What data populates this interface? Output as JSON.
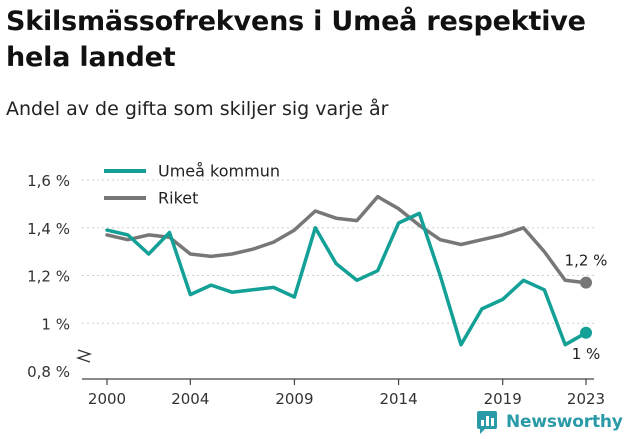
{
  "header": {
    "title": "Skilsmässofrekvens i Umeå respektive hela landet",
    "subtitle": "Andel av de gifta som skiljer sig varje år"
  },
  "brand": {
    "name": "Newsworthy",
    "color": "#2a9aa8"
  },
  "chart_data": {
    "type": "line",
    "ylim": [
      0.8,
      1.7
    ],
    "yticks": [
      0.8,
      1.0,
      1.2,
      1.4,
      1.6
    ],
    "ytick_labels": [
      "0,8 %",
      "1 %",
      "1,2 %",
      "1,4 %",
      "1,6 %"
    ],
    "y_axis_break": true,
    "xlim": [
      2000,
      2023
    ],
    "xticks": [
      2000,
      2004,
      2009,
      2014,
      2019,
      2023
    ],
    "xtick_labels": [
      "2000",
      "2004",
      "2009",
      "2014",
      "2019",
      "2023"
    ],
    "x": [
      2000,
      2001,
      2002,
      2003,
      2004,
      2005,
      2006,
      2007,
      2008,
      2009,
      2010,
      2011,
      2012,
      2013,
      2014,
      2015,
      2016,
      2017,
      2018,
      2019,
      2020,
      2021,
      2022,
      2023
    ],
    "legend_position": "top-left",
    "series": [
      {
        "name": "Umeå kommun",
        "color": "#13a096",
        "values": [
          1.39,
          1.37,
          1.29,
          1.38,
          1.12,
          1.16,
          1.13,
          1.14,
          1.15,
          1.11,
          1.4,
          1.25,
          1.18,
          1.22,
          1.42,
          1.46,
          1.2,
          0.91,
          1.06,
          1.1,
          1.18,
          1.14,
          0.91,
          0.96
        ],
        "end_label": "1 %"
      },
      {
        "name": "Riket",
        "color": "#777777",
        "values": [
          1.37,
          1.35,
          1.37,
          1.36,
          1.29,
          1.28,
          1.29,
          1.31,
          1.34,
          1.39,
          1.47,
          1.44,
          1.43,
          1.53,
          1.48,
          1.41,
          1.35,
          1.33,
          1.35,
          1.37,
          1.4,
          1.3,
          1.18,
          1.17
        ],
        "end_label": "1,2 %"
      }
    ]
  }
}
